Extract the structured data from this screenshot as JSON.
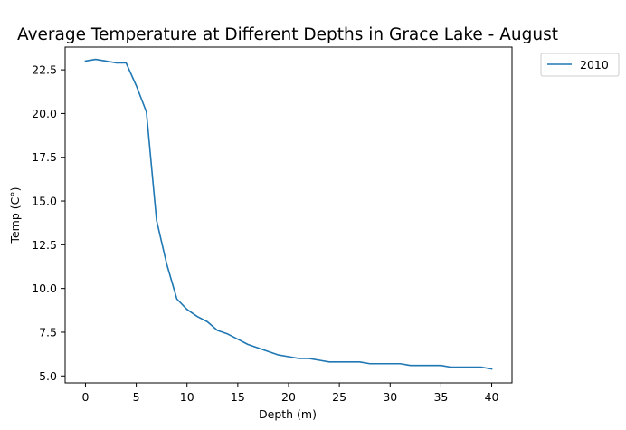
{
  "chart_data": {
    "type": "line",
    "title": "Average Temperature at Different Depths in Grace Lake - August",
    "xlabel": "Depth (m)",
    "ylabel": "Temp (C°)",
    "xlim": [
      -2,
      42
    ],
    "ylim": [
      4.6,
      23.8
    ],
    "xticks": [
      0,
      5,
      10,
      15,
      20,
      25,
      30,
      35,
      40
    ],
    "xtick_labels": [
      "0",
      "5",
      "10",
      "15",
      "20",
      "25",
      "30",
      "35",
      "40"
    ],
    "yticks": [
      5.0,
      7.5,
      10.0,
      12.5,
      15.0,
      17.5,
      20.0,
      22.5
    ],
    "ytick_labels": [
      "5.0",
      "7.5",
      "10.0",
      "12.5",
      "15.0",
      "17.5",
      "20.0",
      "22.5"
    ],
    "grid": false,
    "legend_position": "outside-top-right",
    "series": [
      {
        "name": "2010",
        "color": "#1f77b4",
        "x": [
          0,
          1,
          2,
          3,
          4,
          5,
          6,
          7,
          8,
          9,
          10,
          11,
          12,
          13,
          14,
          15,
          16,
          17,
          18,
          19,
          20,
          21,
          22,
          23,
          24,
          25,
          26,
          27,
          28,
          29,
          30,
          31,
          32,
          33,
          34,
          35,
          36,
          37,
          38,
          39,
          40
        ],
        "y": [
          23.0,
          23.1,
          23.0,
          22.9,
          22.9,
          21.6,
          20.1,
          13.9,
          11.4,
          9.4,
          8.8,
          8.4,
          8.1,
          7.6,
          7.4,
          7.1,
          6.8,
          6.6,
          6.4,
          6.2,
          6.1,
          6.0,
          6.0,
          5.9,
          5.8,
          5.8,
          5.8,
          5.8,
          5.7,
          5.7,
          5.7,
          5.7,
          5.6,
          5.6,
          5.6,
          5.6,
          5.5,
          5.5,
          5.5,
          5.5,
          5.4
        ]
      }
    ]
  }
}
